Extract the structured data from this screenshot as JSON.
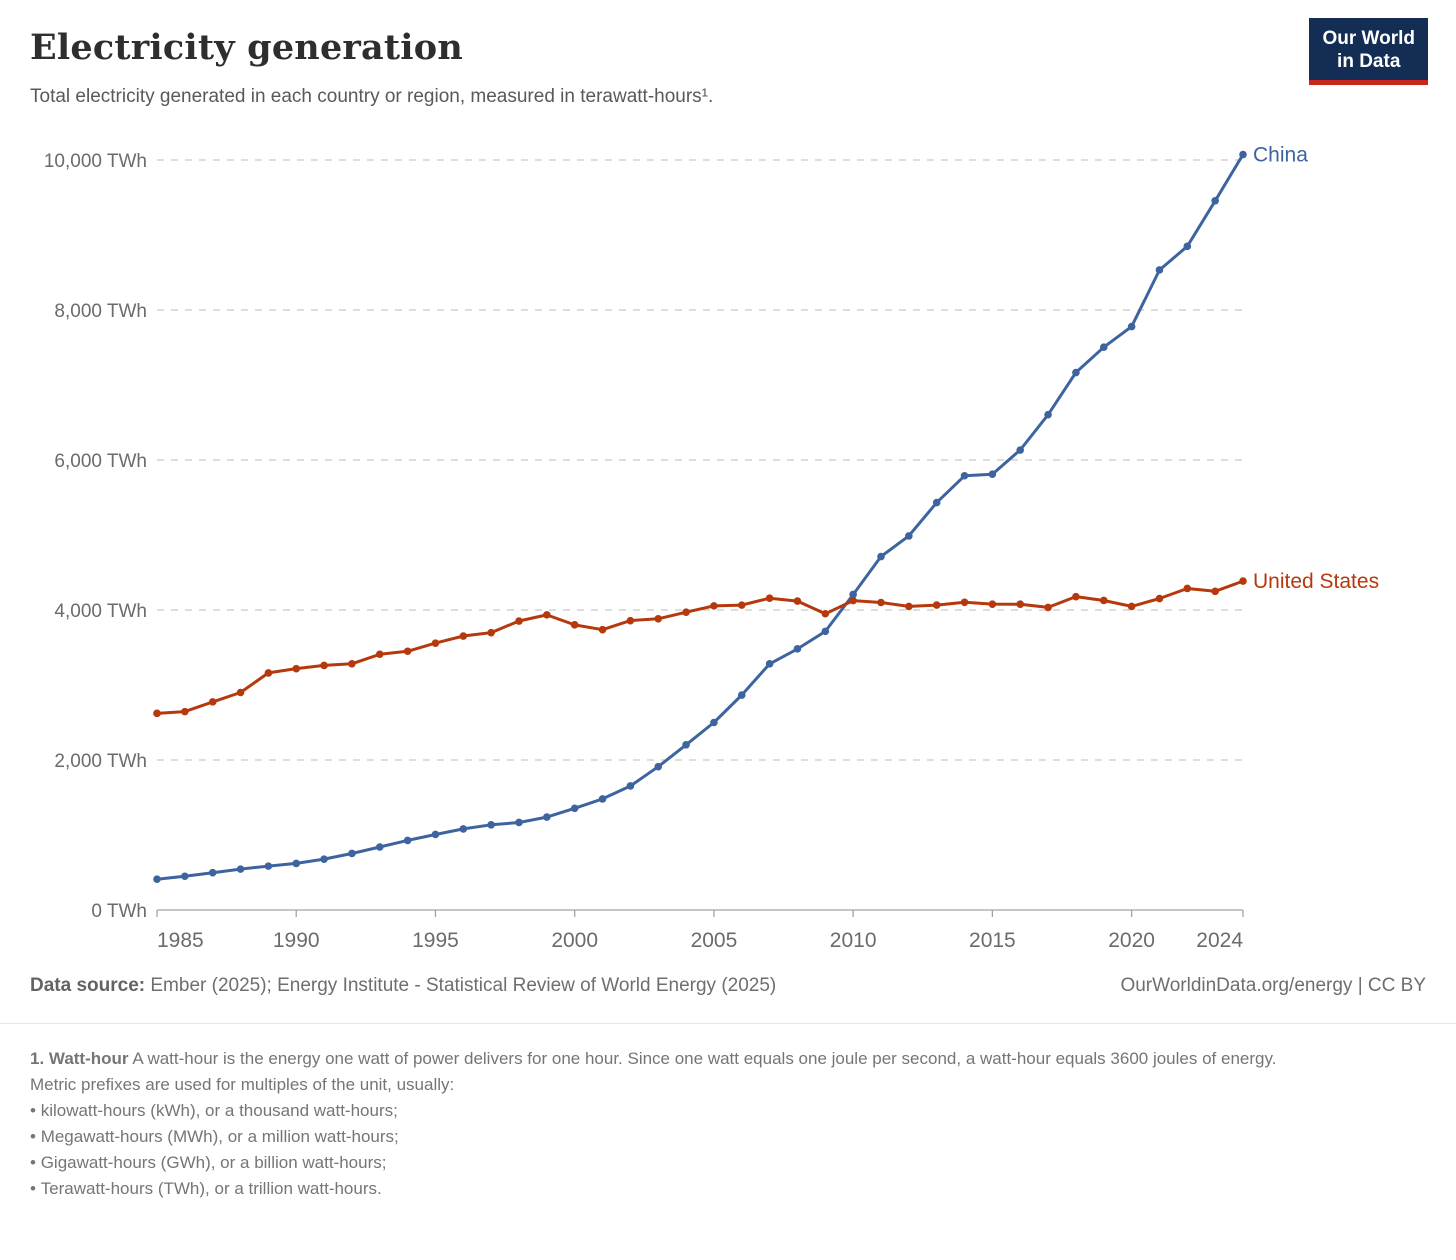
{
  "header": {
    "title": "Electricity generation",
    "subtitle": "Total electricity generated in each country or region, measured in terawatt-hours¹.",
    "logo_line1": "Our World",
    "logo_line2": "in Data",
    "logo_colors": {
      "background": "#132d54",
      "underline": "#c8251b"
    }
  },
  "chart_data": {
    "type": "line",
    "title": "Electricity generation",
    "ylabel": "",
    "xlabel": "",
    "unit": "TWh",
    "xlim": [
      1985,
      2024
    ],
    "ylim": [
      0,
      10000
    ],
    "grid": "horizontal-dashed",
    "legend_position": "line-end-labels",
    "xticks": [
      1985,
      1990,
      1995,
      2000,
      2005,
      2010,
      2015,
      2020,
      2024
    ],
    "yticks": [
      0,
      2000,
      4000,
      6000,
      8000,
      10000
    ],
    "ytick_labels": [
      "0 TWh",
      "2,000 TWh",
      "4,000 TWh",
      "6,000 TWh",
      "8,000 TWh",
      "10,000 TWh"
    ],
    "x": [
      1985,
      1986,
      1987,
      1988,
      1989,
      1990,
      1991,
      1992,
      1993,
      1994,
      1995,
      1996,
      1997,
      1998,
      1999,
      2000,
      2001,
      2002,
      2003,
      2004,
      2005,
      2006,
      2007,
      2008,
      2009,
      2010,
      2011,
      2012,
      2013,
      2014,
      2015,
      2016,
      2017,
      2018,
      2019,
      2020,
      2021,
      2022,
      2023,
      2024
    ],
    "series": [
      {
        "name": "China",
        "color": "#3d649f",
        "values": [
          411,
          450,
          497,
          545,
          585,
          621,
          678,
          754,
          840,
          928,
          1007,
          1081,
          1136,
          1167,
          1239,
          1356,
          1481,
          1654,
          1911,
          2203,
          2500,
          2866,
          3282,
          3482,
          3715,
          4207,
          4713,
          4988,
          5432,
          5790,
          5811,
          6133,
          6604,
          7166,
          7504,
          7779,
          8534,
          8849,
          9456,
          10073
        ]
      },
      {
        "name": "United States",
        "color": "#b5390c",
        "values": [
          2622,
          2645,
          2775,
          2900,
          3161,
          3218,
          3261,
          3283,
          3410,
          3450,
          3558,
          3653,
          3698,
          3853,
          3935,
          3802,
          3737,
          3858,
          3883,
          3971,
          4055,
          4065,
          4157,
          4119,
          3950,
          4125,
          4100,
          4048,
          4066,
          4103,
          4078,
          4077,
          4034,
          4178,
          4127,
          4048,
          4153,
          4287,
          4249,
          4386
        ]
      }
    ],
    "axis_colors": {
      "grid": "#d2d2d2",
      "axis": "#a3a3a3",
      "tick_text": "#6b6b6b"
    }
  },
  "footer": {
    "datasource_label": "Data source:",
    "datasource_text": " Ember (2025); Energy Institute - Statistical Review of World Energy (2025)",
    "license_text": "OurWorldinData.org/energy | CC BY"
  },
  "footnote": {
    "term": "1. Watt-hour",
    "definition": " A watt-hour is the energy one watt of power delivers for one hour. Since one watt equals one joule per second, a watt-hour equals 3600 joules of energy.",
    "prefix_line": "Metric prefixes are used for multiples of the unit, usually:",
    "bullets": [
      "kilowatt-hours (kWh), or a thousand watt-hours;",
      "Megawatt-hours (MWh), or a million watt-hours;",
      "Gigawatt-hours (GWh), or a billion watt-hours;",
      "Terawatt-hours (TWh), or a trillion watt-hours."
    ]
  }
}
